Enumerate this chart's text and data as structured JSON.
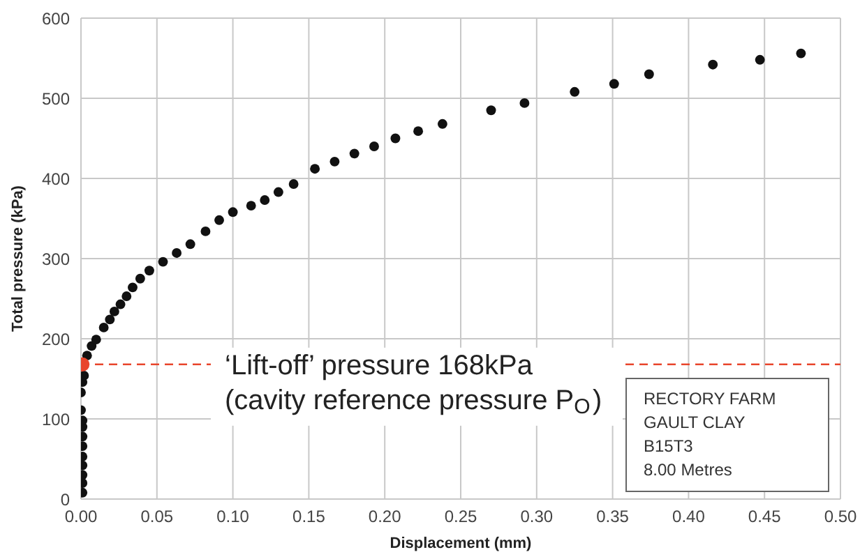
{
  "chart_data": {
    "type": "scatter",
    "xlabel": "Displacement (mm)",
    "ylabel": "Total pressure (kPa)",
    "xlim": [
      0,
      0.5
    ],
    "xticks": [
      {
        "value": 0,
        "label": "0.00"
      },
      {
        "value": 0.05,
        "label": "0.05"
      },
      {
        "value": 0.1,
        "label": "0.10"
      },
      {
        "value": 0.15,
        "label": "0.15"
      },
      {
        "value": 0.2,
        "label": "0.20"
      },
      {
        "value": 0.25,
        "label": "0.25"
      },
      {
        "value": 0.3,
        "label": "0.30"
      },
      {
        "value": 0.35,
        "label": "0.35"
      },
      {
        "value": 0.4,
        "label": "0.40"
      },
      {
        "value": 0.45,
        "label": "0.45"
      },
      {
        "value": 0.5,
        "label": "0.50"
      }
    ],
    "ylim": [
      0,
      600
    ],
    "yticks": [
      0,
      100,
      200,
      300,
      400,
      500,
      600
    ],
    "grid": true,
    "marker": "circle",
    "series": [
      {
        "color": "#111111",
        "x": [
          0.001,
          0.001,
          0.001,
          0.001,
          0.001,
          0.001,
          0.001,
          0.001,
          0.001,
          0.0,
          0.0,
          0.001,
          0.002,
          0.004,
          0.007,
          0.01,
          0.015,
          0.019,
          0.022,
          0.026,
          0.03,
          0.034,
          0.039,
          0.045,
          0.054,
          0.063,
          0.072,
          0.082,
          0.091,
          0.1,
          0.112,
          0.121,
          0.13,
          0.14,
          0.154,
          0.167,
          0.18,
          0.193,
          0.207,
          0.222,
          0.238,
          0.27,
          0.292,
          0.325,
          0.351,
          0.374,
          0.416,
          0.447,
          0.474
        ],
        "values": [
          8,
          20,
          30,
          42,
          53,
          66,
          78,
          90,
          98,
          111,
          133,
          146,
          154,
          179,
          191,
          199,
          214,
          224,
          234,
          243,
          253,
          264,
          275,
          285,
          296,
          307,
          318,
          334,
          348,
          358,
          366,
          373,
          383,
          393,
          412,
          421,
          431,
          440,
          450,
          459,
          468,
          485,
          494,
          508,
          518,
          530,
          542,
          548,
          556
        ]
      },
      {
        "color": "#e8452c",
        "x": [
          0.001
        ],
        "values": [
          168
        ]
      }
    ],
    "ref_lines": [
      {
        "axis": "y",
        "value": 168,
        "label": "‘Lift-off’ pressure 168kPa\n(cavity reference pressure P$_{O}$)",
        "color": "#e8452c",
        "line_style": "dashed"
      }
    ],
    "annotations": [
      "RECTORY FARM",
      "GAULT CLAY",
      "B15T3",
      "8.00 Metres"
    ]
  }
}
